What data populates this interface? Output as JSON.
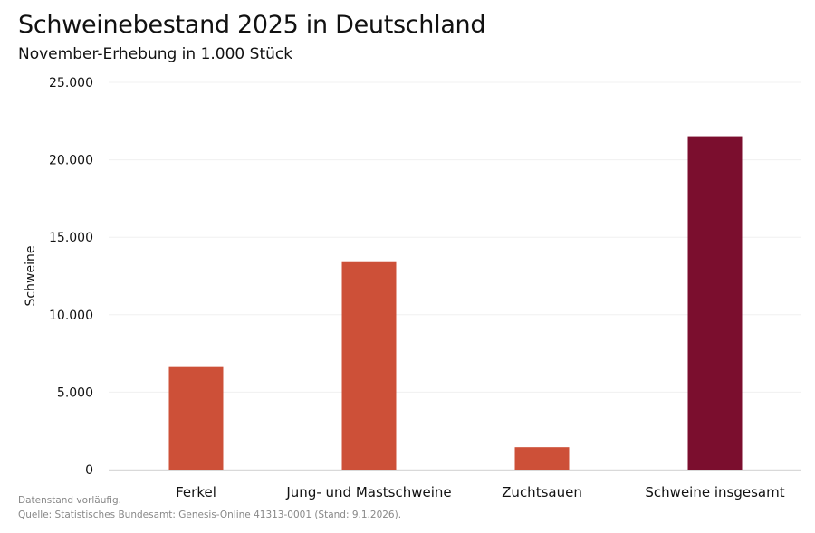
{
  "chart_data": {
    "type": "bar",
    "title": "Schweinebestand 2025 in Deutschland",
    "subtitle": "November-Erhebung in 1.000 Stück",
    "xlabel": "",
    "ylabel": "Schweine",
    "ylim": [
      0,
      25000
    ],
    "yticks": [
      0,
      5000,
      10000,
      15000,
      20000,
      25000
    ],
    "ytick_labels": [
      "0",
      "5.000",
      "10.000",
      "15.000",
      "20.000",
      "25.000"
    ],
    "categories": [
      "Ferkel",
      "Jung- und Mastschweine",
      "Zuchtsauen",
      "Schweine insgesamt"
    ],
    "values": [
      6620,
      13450,
      1450,
      21520
    ],
    "colors": [
      "#cd5038",
      "#cd5038",
      "#cd5038",
      "#7b0e2e"
    ],
    "grid": true
  },
  "notes": {
    "line1": "Datenstand vorläufig.",
    "line2": "Quelle: Statistisches Bundesamt: Genesis-Online 41313-0001 (Stand: 9.1.2026)."
  }
}
